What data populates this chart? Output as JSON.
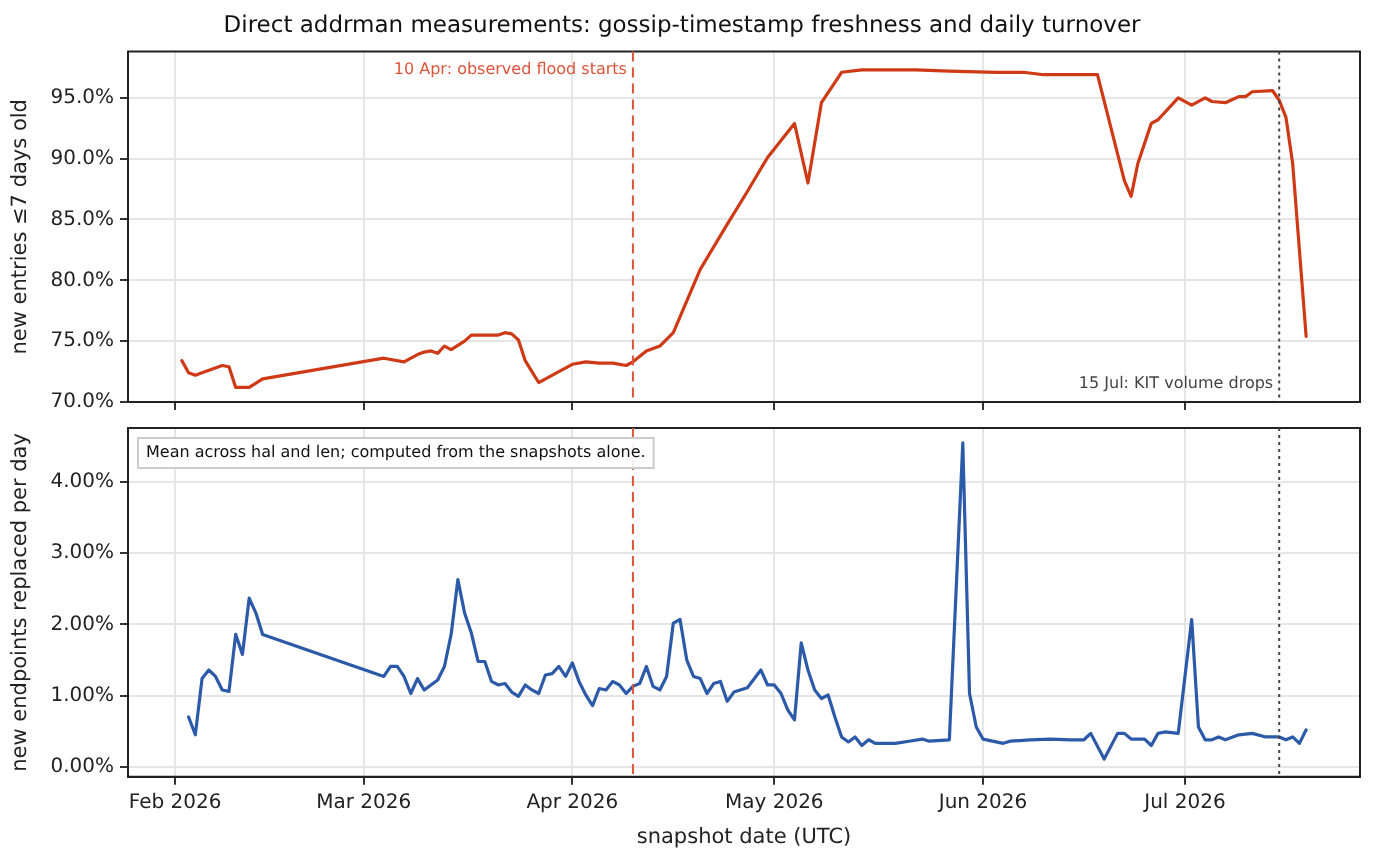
{
  "chart_data": [
    {
      "type": "line",
      "title": "Direct addrman measurements: gossip-timestamp freshness and daily turnover",
      "ylabel": "new entries ≤7 days old",
      "xlim": [
        "2026-01-25",
        "2026-07-27"
      ],
      "xticks": [
        {
          "value": "2026-02-01",
          "label": null
        },
        {
          "value": "2026-03-01",
          "label": null
        },
        {
          "value": "2026-04-01",
          "label": null
        },
        {
          "value": "2026-05-01",
          "label": null
        },
        {
          "value": "2026-06-01",
          "label": null
        },
        {
          "value": "2026-07-01",
          "label": null
        }
      ],
      "ylim": [
        70,
        98.8
      ],
      "yticks": [
        {
          "value": 70,
          "label": "70.0%"
        },
        {
          "value": 75,
          "label": "75.0%"
        },
        {
          "value": 80,
          "label": "80.0%"
        },
        {
          "value": 85,
          "label": "85.0%"
        },
        {
          "value": 90,
          "label": "90.0%"
        },
        {
          "value": 95,
          "label": "95.0%"
        }
      ],
      "tick_labels": "y",
      "grid": true,
      "legend": false,
      "marker": "none",
      "line_style": "solid",
      "ref_lines": [
        {
          "axis": "x",
          "value": "2026-04-10",
          "label": "10 Apr: observed flood starts",
          "color": "#e0533a",
          "line_style": "dashed"
        },
        {
          "axis": "x",
          "value": "2026-07-15",
          "label": "15 Jul: KIT volume drops",
          "color": "#444444",
          "line_style": "dotted"
        }
      ],
      "series": [
        {
          "color": "#cf3a16",
          "x": [
            "2026-02-02",
            "2026-02-03",
            "2026-02-04",
            "2026-02-05",
            "2026-02-08",
            "2026-02-09",
            "2026-02-10",
            "2026-02-12",
            "2026-02-14",
            "2026-03-04",
            "2026-03-07",
            "2026-03-09",
            "2026-03-10",
            "2026-03-11",
            "2026-03-12",
            "2026-03-13",
            "2026-03-14",
            "2026-03-16",
            "2026-03-17",
            "2026-03-21",
            "2026-03-22",
            "2026-03-23",
            "2026-03-24",
            "2026-03-25",
            "2026-03-27",
            "2026-03-30",
            "2026-04-01",
            "2026-04-03",
            "2026-04-05",
            "2026-04-07",
            "2026-04-09",
            "2026-04-10",
            "2026-04-12",
            "2026-04-14",
            "2026-04-16",
            "2026-04-20",
            "2026-04-24",
            "2026-04-27",
            "2026-04-30",
            "2026-05-04",
            "2026-05-06",
            "2026-05-08",
            "2026-05-11",
            "2026-05-14",
            "2026-05-22",
            "2026-05-27",
            "2026-06-03",
            "2026-06-07",
            "2026-06-10",
            "2026-06-15",
            "2026-06-18",
            "2026-06-22",
            "2026-06-23",
            "2026-06-24",
            "2026-06-26",
            "2026-06-27",
            "2026-06-30",
            "2026-07-02",
            "2026-07-04",
            "2026-07-05",
            "2026-07-07",
            "2026-07-09",
            "2026-07-10",
            "2026-07-11",
            "2026-07-14",
            "2026-07-15",
            "2026-07-16",
            "2026-07-17",
            "2026-07-19"
          ],
          "values": [
            73.4,
            72.4,
            72.2,
            72.4,
            73.0,
            72.9,
            71.2,
            71.2,
            71.9,
            73.6,
            73.3,
            73.9,
            74.1,
            74.2,
            74.0,
            74.6,
            74.3,
            75.0,
            75.5,
            75.5,
            75.7,
            75.6,
            75.1,
            73.4,
            71.6,
            72.5,
            73.1,
            73.3,
            73.2,
            73.2,
            73.0,
            73.3,
            74.2,
            74.6,
            75.7,
            80.9,
            84.6,
            87.3,
            90.1,
            92.9,
            88.0,
            94.6,
            97.1,
            97.3,
            97.3,
            97.2,
            97.1,
            97.1,
            96.9,
            96.9,
            96.9,
            88.2,
            86.9,
            89.6,
            92.9,
            93.2,
            95.0,
            94.4,
            95.0,
            94.7,
            94.6,
            95.1,
            95.1,
            95.5,
            95.6,
            94.8,
            93.4,
            89.6,
            75.4
          ]
        }
      ]
    },
    {
      "type": "line",
      "xlabel": "snapshot date (UTC)",
      "ylabel": "new endpoints replaced per day",
      "xlim": [
        "2026-01-25",
        "2026-07-27"
      ],
      "xticks": [
        {
          "value": "2026-02-01",
          "label": "Feb 2026"
        },
        {
          "value": "2026-03-01",
          "label": "Mar 2026"
        },
        {
          "value": "2026-04-01",
          "label": "Apr 2026"
        },
        {
          "value": "2026-05-01",
          "label": "May 2026"
        },
        {
          "value": "2026-06-01",
          "label": "Jun 2026"
        },
        {
          "value": "2026-07-01",
          "label": "Jul 2026"
        }
      ],
      "ylim": [
        -0.14,
        4.76
      ],
      "yticks": [
        {
          "value": 0,
          "label": "0.00%"
        },
        {
          "value": 1,
          "label": "1.00%"
        },
        {
          "value": 2,
          "label": "2.00%"
        },
        {
          "value": 3,
          "label": "3.00%"
        },
        {
          "value": 4,
          "label": "4.00%"
        }
      ],
      "grid": true,
      "legend": false,
      "marker": "none",
      "line_style": "solid",
      "annotations": [
        "Mean across hal and len; computed from the snapshots alone."
      ],
      "ref_lines": [
        {
          "axis": "x",
          "value": "2026-04-10",
          "color": "#e0533a",
          "line_style": "dashed"
        },
        {
          "axis": "x",
          "value": "2026-07-15",
          "color": "#444444",
          "line_style": "dotted"
        }
      ],
      "series": [
        {
          "color": "#2c5aa8",
          "x": [
            "2026-02-03",
            "2026-02-04",
            "2026-02-05",
            "2026-02-06",
            "2026-02-07",
            "2026-02-08",
            "2026-02-09",
            "2026-02-10",
            "2026-02-11",
            "2026-02-12",
            "2026-02-13",
            "2026-02-14",
            "2026-03-04",
            "2026-03-05",
            "2026-03-06",
            "2026-03-07",
            "2026-03-08",
            "2026-03-09",
            "2026-03-10",
            "2026-03-11",
            "2026-03-12",
            "2026-03-13",
            "2026-03-14",
            "2026-03-15",
            "2026-03-16",
            "2026-03-17",
            "2026-03-18",
            "2026-03-19",
            "2026-03-20",
            "2026-03-21",
            "2026-03-22",
            "2026-03-23",
            "2026-03-24",
            "2026-03-25",
            "2026-03-26",
            "2026-03-27",
            "2026-03-28",
            "2026-03-29",
            "2026-03-30",
            "2026-03-31",
            "2026-04-01",
            "2026-04-02",
            "2026-04-03",
            "2026-04-04",
            "2026-04-05",
            "2026-04-06",
            "2026-04-07",
            "2026-04-08",
            "2026-04-09",
            "2026-04-10",
            "2026-04-11",
            "2026-04-12",
            "2026-04-13",
            "2026-04-14",
            "2026-04-15",
            "2026-04-16",
            "2026-04-17",
            "2026-04-18",
            "2026-04-19",
            "2026-04-20",
            "2026-04-21",
            "2026-04-22",
            "2026-04-23",
            "2026-04-24",
            "2026-04-25",
            "2026-04-27",
            "2026-04-29",
            "2026-04-30",
            "2026-05-01",
            "2026-05-02",
            "2026-05-03",
            "2026-05-04",
            "2026-05-05",
            "2026-05-06",
            "2026-05-07",
            "2026-05-08",
            "2026-05-09",
            "2026-05-10",
            "2026-05-11",
            "2026-05-12",
            "2026-05-13",
            "2026-05-14",
            "2026-05-15",
            "2026-05-16",
            "2026-05-19",
            "2026-05-21",
            "2026-05-23",
            "2026-05-24",
            "2026-05-27",
            "2026-05-29",
            "2026-05-30",
            "2026-05-31",
            "2026-06-01",
            "2026-06-04",
            "2026-06-05",
            "2026-06-08",
            "2026-06-11",
            "2026-06-14",
            "2026-06-16",
            "2026-06-17",
            "2026-06-19",
            "2026-06-21",
            "2026-06-22",
            "2026-06-23",
            "2026-06-25",
            "2026-06-26",
            "2026-06-27",
            "2026-06-28",
            "2026-06-30",
            "2026-07-02",
            "2026-07-03",
            "2026-07-04",
            "2026-07-05",
            "2026-07-06",
            "2026-07-07",
            "2026-07-09",
            "2026-07-11",
            "2026-07-13",
            "2026-07-15",
            "2026-07-16",
            "2026-07-17",
            "2026-07-18",
            "2026-07-19"
          ],
          "values": [
            0.7,
            0.45,
            1.24,
            1.36,
            1.27,
            1.08,
            1.06,
            1.86,
            1.58,
            2.37,
            2.16,
            1.86,
            1.27,
            1.41,
            1.41,
            1.27,
            1.03,
            1.24,
            1.08,
            1.15,
            1.22,
            1.41,
            1.86,
            2.63,
            2.16,
            1.88,
            1.48,
            1.48,
            1.2,
            1.15,
            1.17,
            1.05,
            0.99,
            1.15,
            1.08,
            1.03,
            1.29,
            1.31,
            1.41,
            1.27,
            1.46,
            1.2,
            1.01,
            0.86,
            1.1,
            1.08,
            1.2,
            1.15,
            1.03,
            1.13,
            1.17,
            1.41,
            1.13,
            1.08,
            1.27,
            2.02,
            2.07,
            1.5,
            1.27,
            1.24,
            1.03,
            1.17,
            1.2,
            0.92,
            1.05,
            1.11,
            1.36,
            1.15,
            1.15,
            1.03,
            0.8,
            0.66,
            1.74,
            1.36,
            1.08,
            0.96,
            1.01,
            0.7,
            0.42,
            0.35,
            0.42,
            0.3,
            0.38,
            0.33,
            0.33,
            0.36,
            0.39,
            0.36,
            0.38,
            4.55,
            1.03,
            0.56,
            0.39,
            0.33,
            0.36,
            0.38,
            0.39,
            0.38,
            0.38,
            0.47,
            0.11,
            0.47,
            0.47,
            0.39,
            0.39,
            0.3,
            0.47,
            0.49,
            0.47,
            2.07,
            0.56,
            0.38,
            0.38,
            0.42,
            0.38,
            0.45,
            0.47,
            0.42,
            0.42,
            0.38,
            0.42,
            0.33,
            0.52
          ]
        }
      ]
    }
  ]
}
